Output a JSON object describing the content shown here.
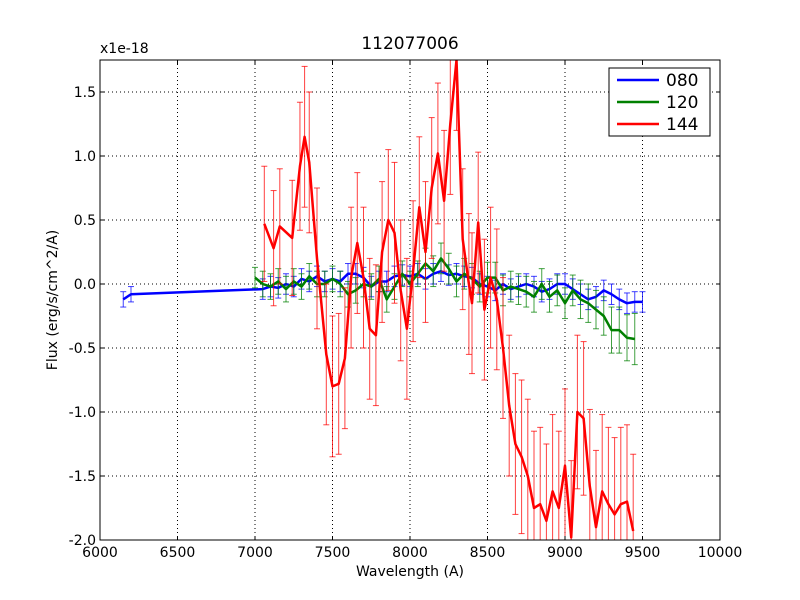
{
  "chart_data": {
    "type": "line",
    "title": "112077006",
    "xlabel": "Wavelength (A)",
    "ylabel": "Flux (erg/s/cm^2/A)",
    "y_multiplier_label": "x1e-18",
    "xlim": [
      6000,
      10000
    ],
    "ylim": [
      -2.0,
      1.75
    ],
    "grid": true,
    "legend_position": "top-right",
    "x_ticks": [
      6000,
      6500,
      7000,
      7500,
      8000,
      8500,
      9000,
      9500,
      10000
    ],
    "x_tick_labels": [
      "6000",
      "6500",
      "7000",
      "7500",
      "8000",
      "8500",
      "9000",
      "9500",
      "10000"
    ],
    "y_ticks": [
      -2.0,
      -1.5,
      -1.0,
      -0.5,
      0.0,
      0.5,
      1.0,
      1.5
    ],
    "y_tick_labels": [
      "-2.0",
      "-1.5",
      "-1.0",
      "-0.5",
      "0.0",
      "0.5",
      "1.0",
      "1.5"
    ],
    "series": [
      {
        "name": "080",
        "color": "#0000ff",
        "x": [
          6150,
          6200,
          7050,
          7100,
          7150,
          7200,
          7250,
          7300,
          7350,
          7400,
          7450,
          7500,
          7550,
          7600,
          7650,
          7700,
          7750,
          7800,
          7850,
          7900,
          7950,
          8000,
          8050,
          8100,
          8150,
          8200,
          8250,
          8300,
          8350,
          8400,
          8450,
          8500,
          8550,
          8600,
          8650,
          8700,
          8750,
          8800,
          8850,
          8900,
          8950,
          9000,
          9050,
          9100,
          9150,
          9200,
          9250,
          9300,
          9350,
          9400,
          9450,
          9500
        ],
        "y": [
          -0.12,
          -0.08,
          -0.04,
          -0.02,
          -0.03,
          0.0,
          -0.02,
          0.04,
          0.02,
          0.06,
          0.02,
          0.04,
          0.02,
          0.08,
          0.08,
          0.05,
          -0.02,
          0.02,
          0.02,
          0.06,
          0.07,
          0.06,
          0.08,
          0.04,
          0.08,
          0.1,
          0.07,
          0.08,
          0.06,
          0.05,
          0.0,
          -0.02,
          -0.05,
          0.0,
          -0.04,
          -0.02,
          0.0,
          -0.02,
          -0.06,
          -0.04,
          0.0,
          0.0,
          -0.04,
          -0.08,
          -0.12,
          -0.1,
          -0.05,
          -0.08,
          -0.12,
          -0.15,
          -0.14,
          -0.14
        ],
        "err": [
          0.06,
          0.06,
          0.08,
          0.08,
          0.08,
          0.08,
          0.08,
          0.08,
          0.08,
          0.08,
          0.08,
          0.08,
          0.08,
          0.08,
          0.08,
          0.08,
          0.08,
          0.08,
          0.08,
          0.08,
          0.08,
          0.08,
          0.08,
          0.08,
          0.08,
          0.08,
          0.08,
          0.08,
          0.08,
          0.08,
          0.08,
          0.08,
          0.08,
          0.08,
          0.08,
          0.08,
          0.08,
          0.08,
          0.08,
          0.08,
          0.08,
          0.08,
          0.08,
          0.08,
          0.08,
          0.08,
          0.08,
          0.08,
          0.08,
          0.08,
          0.08,
          0.08
        ]
      },
      {
        "name": "120",
        "color": "#008000",
        "x": [
          7000,
          7050,
          7100,
          7150,
          7200,
          7250,
          7300,
          7350,
          7400,
          7450,
          7500,
          7550,
          7600,
          7650,
          7700,
          7750,
          7800,
          7850,
          7900,
          7950,
          8000,
          8050,
          8100,
          8150,
          8200,
          8250,
          8300,
          8350,
          8400,
          8450,
          8500,
          8550,
          8600,
          8650,
          8700,
          8750,
          8800,
          8850,
          8900,
          8950,
          9000,
          9050,
          9100,
          9150,
          9200,
          9250,
          9300,
          9350,
          9400,
          9450
        ],
        "y": [
          0.05,
          0.0,
          -0.02,
          0.02,
          -0.04,
          0.02,
          -0.02,
          0.06,
          0.0,
          0.0,
          0.04,
          0.0,
          -0.08,
          -0.05,
          0.0,
          -0.02,
          0.04,
          -0.12,
          -0.02,
          0.08,
          0.0,
          0.08,
          0.16,
          0.1,
          0.2,
          0.12,
          0.02,
          0.08,
          0.04,
          -0.02,
          0.05,
          0.05,
          -0.05,
          -0.02,
          -0.04,
          -0.06,
          -0.1,
          0.0,
          -0.1,
          -0.05,
          -0.15,
          -0.05,
          -0.12,
          -0.15,
          -0.2,
          -0.25,
          -0.36,
          -0.36,
          -0.42,
          -0.43
        ],
        "err": [
          0.08,
          0.1,
          0.1,
          0.1,
          0.1,
          0.1,
          0.1,
          0.1,
          0.1,
          0.1,
          0.1,
          0.1,
          0.1,
          0.1,
          0.1,
          0.1,
          0.1,
          0.1,
          0.1,
          0.1,
          0.1,
          0.1,
          0.12,
          0.12,
          0.12,
          0.12,
          0.12,
          0.12,
          0.12,
          0.12,
          0.12,
          0.12,
          0.12,
          0.12,
          0.12,
          0.12,
          0.12,
          0.12,
          0.12,
          0.12,
          0.12,
          0.12,
          0.15,
          0.15,
          0.15,
          0.15,
          0.18,
          0.18,
          0.18,
          0.2
        ]
      },
      {
        "name": "144",
        "color": "#ff0000",
        "x": [
          7060,
          7120,
          7160,
          7240,
          7290,
          7320,
          7350,
          7400,
          7460,
          7500,
          7540,
          7580,
          7620,
          7660,
          7700,
          7740,
          7780,
          7820,
          7860,
          7900,
          7940,
          7980,
          8020,
          8060,
          8100,
          8140,
          8180,
          8220,
          8260,
          8300,
          8340,
          8380,
          8400,
          8440,
          8480,
          8520,
          8560,
          8600,
          8640,
          8680,
          8720,
          8760,
          8800,
          8840,
          8880,
          8920,
          8960,
          9000,
          9040,
          9080,
          9120,
          9160,
          9200,
          9240,
          9280,
          9320,
          9360,
          9400,
          9440
        ],
        "y": [
          0.47,
          0.28,
          0.45,
          0.36,
          0.92,
          1.15,
          0.95,
          0.2,
          -0.55,
          -0.8,
          -0.78,
          -0.58,
          0.05,
          0.32,
          0.05,
          -0.35,
          -0.4,
          0.25,
          0.5,
          0.4,
          -0.05,
          -0.35,
          0.1,
          0.6,
          0.25,
          0.75,
          1.02,
          0.65,
          1.25,
          1.75,
          0.35,
          0.0,
          -0.15,
          0.48,
          -0.2,
          0.05,
          -0.12,
          -0.5,
          -0.95,
          -1.25,
          -1.35,
          -1.5,
          -1.75,
          -1.72,
          -1.85,
          -1.62,
          -1.75,
          -1.42,
          -1.98,
          -1.0,
          -1.05,
          -1.58,
          -1.9,
          -1.62,
          -1.72,
          -1.8,
          -1.72,
          -1.7,
          -1.93
        ],
        "err": [
          0.45,
          0.45,
          0.45,
          0.45,
          0.5,
          0.55,
          0.55,
          0.55,
          0.55,
          0.55,
          0.55,
          0.55,
          0.55,
          0.55,
          0.55,
          0.55,
          0.55,
          0.55,
          0.55,
          0.55,
          0.55,
          0.55,
          0.55,
          0.55,
          0.55,
          0.55,
          0.55,
          0.55,
          0.55,
          0.55,
          0.55,
          0.55,
          0.55,
          0.55,
          0.55,
          0.55,
          0.55,
          0.55,
          0.55,
          0.55,
          0.6,
          0.6,
          0.6,
          0.6,
          0.6,
          0.6,
          0.6,
          0.6,
          0.6,
          0.6,
          0.6,
          0.6,
          0.6,
          0.6,
          0.6,
          0.6,
          0.6,
          0.6,
          0.6
        ]
      }
    ]
  }
}
